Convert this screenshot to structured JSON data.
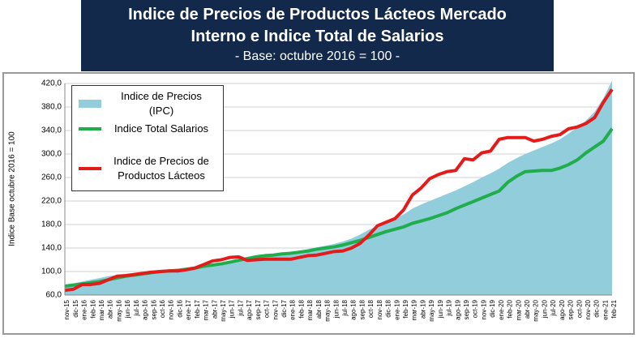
{
  "chart_data": {
    "type": "line",
    "title": "Indice de Precios de Productos Lácteos Mercado Interno e Indice Total de Salarios",
    "subtitle": "- Base: octubre 2016 = 100 -",
    "y_label": "Indice Base octubre 2016 = 100",
    "categories": [
      "nov-15",
      "dic-15",
      "ene-16",
      "feb-16",
      "mar-16",
      "abr-16",
      "may-16",
      "jun-16",
      "jul-16",
      "ago-16",
      "sep-16",
      "oct-16",
      "nov-16",
      "dic-16",
      "ene-17",
      "feb-17",
      "mar-17",
      "abr-17",
      "may-17",
      "jun-17",
      "jul-17",
      "ago-17",
      "sep-17",
      "oct-17",
      "nov-17",
      "dic-17",
      "ene-18",
      "feb-18",
      "mar-18",
      "abr-18",
      "may-18",
      "jun-18",
      "jul-18",
      "ago-18",
      "sep-18",
      "oct-18",
      "nov-18",
      "dic-18",
      "ene-19",
      "feb-19",
      "mar-19",
      "abr-19",
      "may-19",
      "jun-19",
      "jul-19",
      "ago-19",
      "sep-19",
      "oct-19",
      "nov-19",
      "dic-19",
      "ene-20",
      "feb-20",
      "mar-20",
      "abr-20",
      "may-20",
      "jun-20",
      "jul-20",
      "ago-20",
      "sep-20",
      "oct-20",
      "nov-20",
      "dic-20",
      "ene-21",
      "feb-21"
    ],
    "series": [
      {
        "name": "Indice de Precios (IPC)",
        "color": "#92cddc",
        "style": "area",
        "values": [
          78,
          80,
          83,
          86,
          89,
          92,
          94,
          96,
          97,
          98,
          99,
          100,
          101,
          103,
          105,
          107,
          109,
          111,
          113,
          115,
          117,
          120,
          122,
          125,
          127,
          130,
          132,
          135,
          138,
          141,
          144,
          147,
          151,
          156,
          163,
          171,
          178,
          183,
          190,
          197,
          207,
          214,
          220,
          226,
          232,
          238,
          245,
          252,
          260,
          267,
          275,
          285,
          293,
          300,
          306,
          312,
          318,
          325,
          335,
          345,
          357,
          372,
          395,
          425
        ]
      },
      {
        "name": "Indice Total Salarios",
        "color": "#1fae4b",
        "style": "line",
        "values": [
          75,
          77,
          79,
          81,
          83,
          86,
          89,
          92,
          94,
          96,
          98,
          100,
          101,
          102,
          104,
          106,
          109,
          111,
          113,
          116,
          119,
          122,
          125,
          127,
          128,
          130,
          131,
          133,
          135,
          138,
          140,
          142,
          145,
          149,
          153,
          158,
          163,
          168,
          172,
          176,
          182,
          186,
          190,
          195,
          200,
          207,
          213,
          219,
          225,
          231,
          237,
          252,
          262,
          270,
          271,
          272,
          272,
          276,
          282,
          290,
          302,
          312,
          322,
          343
        ]
      },
      {
        "name": "Indice de Precios de Productos Lácteos",
        "color": "#e31b1b",
        "style": "line",
        "values": [
          68,
          70,
          78,
          78,
          80,
          86,
          92,
          93,
          95,
          97,
          99,
          100,
          101,
          101,
          103,
          106,
          112,
          118,
          120,
          124,
          125,
          119,
          120,
          121,
          121,
          121,
          121,
          124,
          127,
          128,
          131,
          134,
          135,
          140,
          148,
          162,
          178,
          184,
          190,
          205,
          230,
          242,
          258,
          265,
          270,
          272,
          292,
          290,
          302,
          305,
          325,
          328,
          328,
          328,
          322,
          325,
          330,
          333,
          343,
          346,
          352,
          362,
          388,
          410
        ]
      }
    ],
    "ylim": [
      60,
      420
    ],
    "yticks": [
      {
        "value": 60,
        "label": "60,0"
      },
      {
        "value": 100,
        "label": "100,0"
      },
      {
        "value": 140,
        "label": "140,0"
      },
      {
        "value": 180,
        "label": "180,0"
      },
      {
        "value": 220,
        "label": "220,0"
      },
      {
        "value": 260,
        "label": "260,0"
      },
      {
        "value": 300,
        "label": "300,0"
      },
      {
        "value": 340,
        "label": "340,0"
      },
      {
        "value": 380,
        "label": "380,0"
      },
      {
        "value": 420,
        "label": "420,0"
      }
    ],
    "grid": true
  }
}
